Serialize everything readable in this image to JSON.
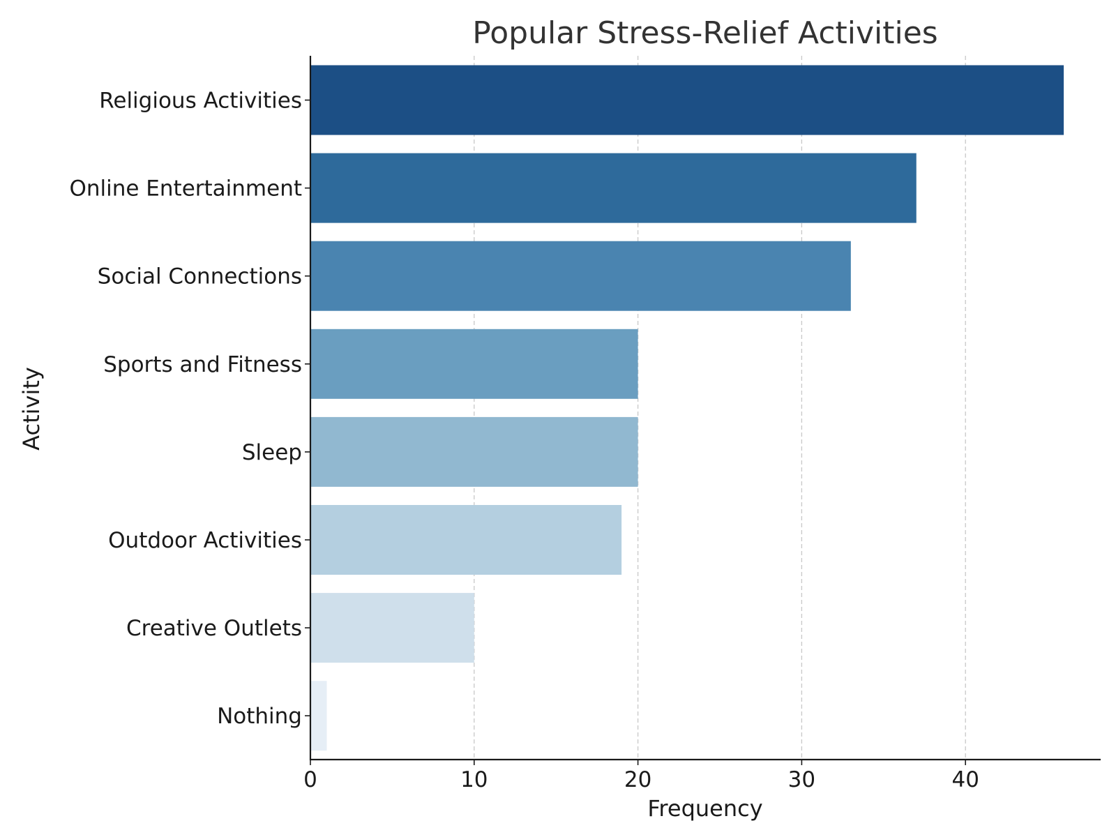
{
  "chart_data": {
    "type": "bar",
    "orientation": "horizontal",
    "title": "Popular Stress-Relief Activities",
    "xlabel": "Frequency",
    "ylabel": "Activity",
    "categories": [
      "Religious Activities",
      "Online Entertainment",
      "Social Connections",
      "Sports and Fitness",
      "Sleep",
      "Outdoor Activities",
      "Creative Outlets",
      "Nothing"
    ],
    "values": [
      46,
      37,
      33,
      20,
      20,
      19,
      10,
      1
    ],
    "colors": [
      "#1c4f85",
      "#2e6a9b",
      "#4a84b0",
      "#6a9ec0",
      "#91b8d0",
      "#b4cfe0",
      "#cfdfeb",
      "#e6eef6"
    ],
    "xlim": [
      0,
      48.3
    ],
    "xticks": [
      0,
      10,
      20,
      30,
      40
    ],
    "xtick_labels": [
      "0",
      "10",
      "20",
      "30",
      "40"
    ],
    "grid": "x-dashed",
    "legend": "none"
  }
}
